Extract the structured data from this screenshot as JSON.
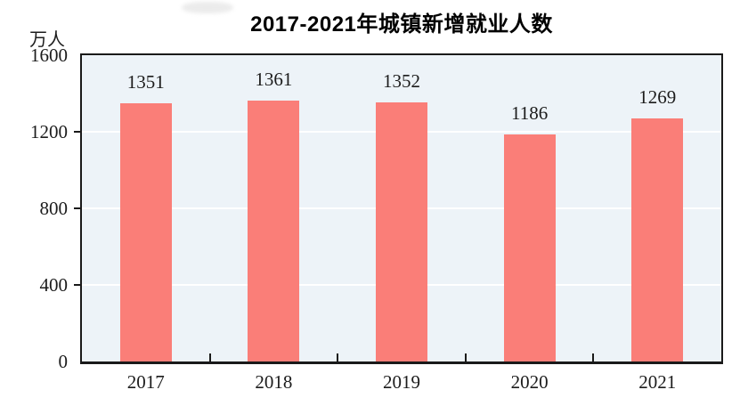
{
  "chart_data": {
    "type": "bar",
    "title": "2017-2021年城镇新增就业人数",
    "ylabel": "万人",
    "xlabel": "",
    "categories": [
      "2017",
      "2018",
      "2019",
      "2020",
      "2021"
    ],
    "values": [
      1351,
      1361,
      1352,
      1186,
      1269
    ],
    "ylim": [
      0,
      1600
    ],
    "yticks": [
      0,
      400,
      800,
      1200,
      1600
    ],
    "grid_yticks": [
      400,
      800,
      1200
    ],
    "show_value_labels": true,
    "legend": "none",
    "colors": {
      "bar": "#fa7e78",
      "plot_background": "#edf3f8",
      "gridline": "#ffffff",
      "axis": "#1a1a1a",
      "text": "#1c1c1c",
      "page_background": "#ffffff"
    }
  }
}
